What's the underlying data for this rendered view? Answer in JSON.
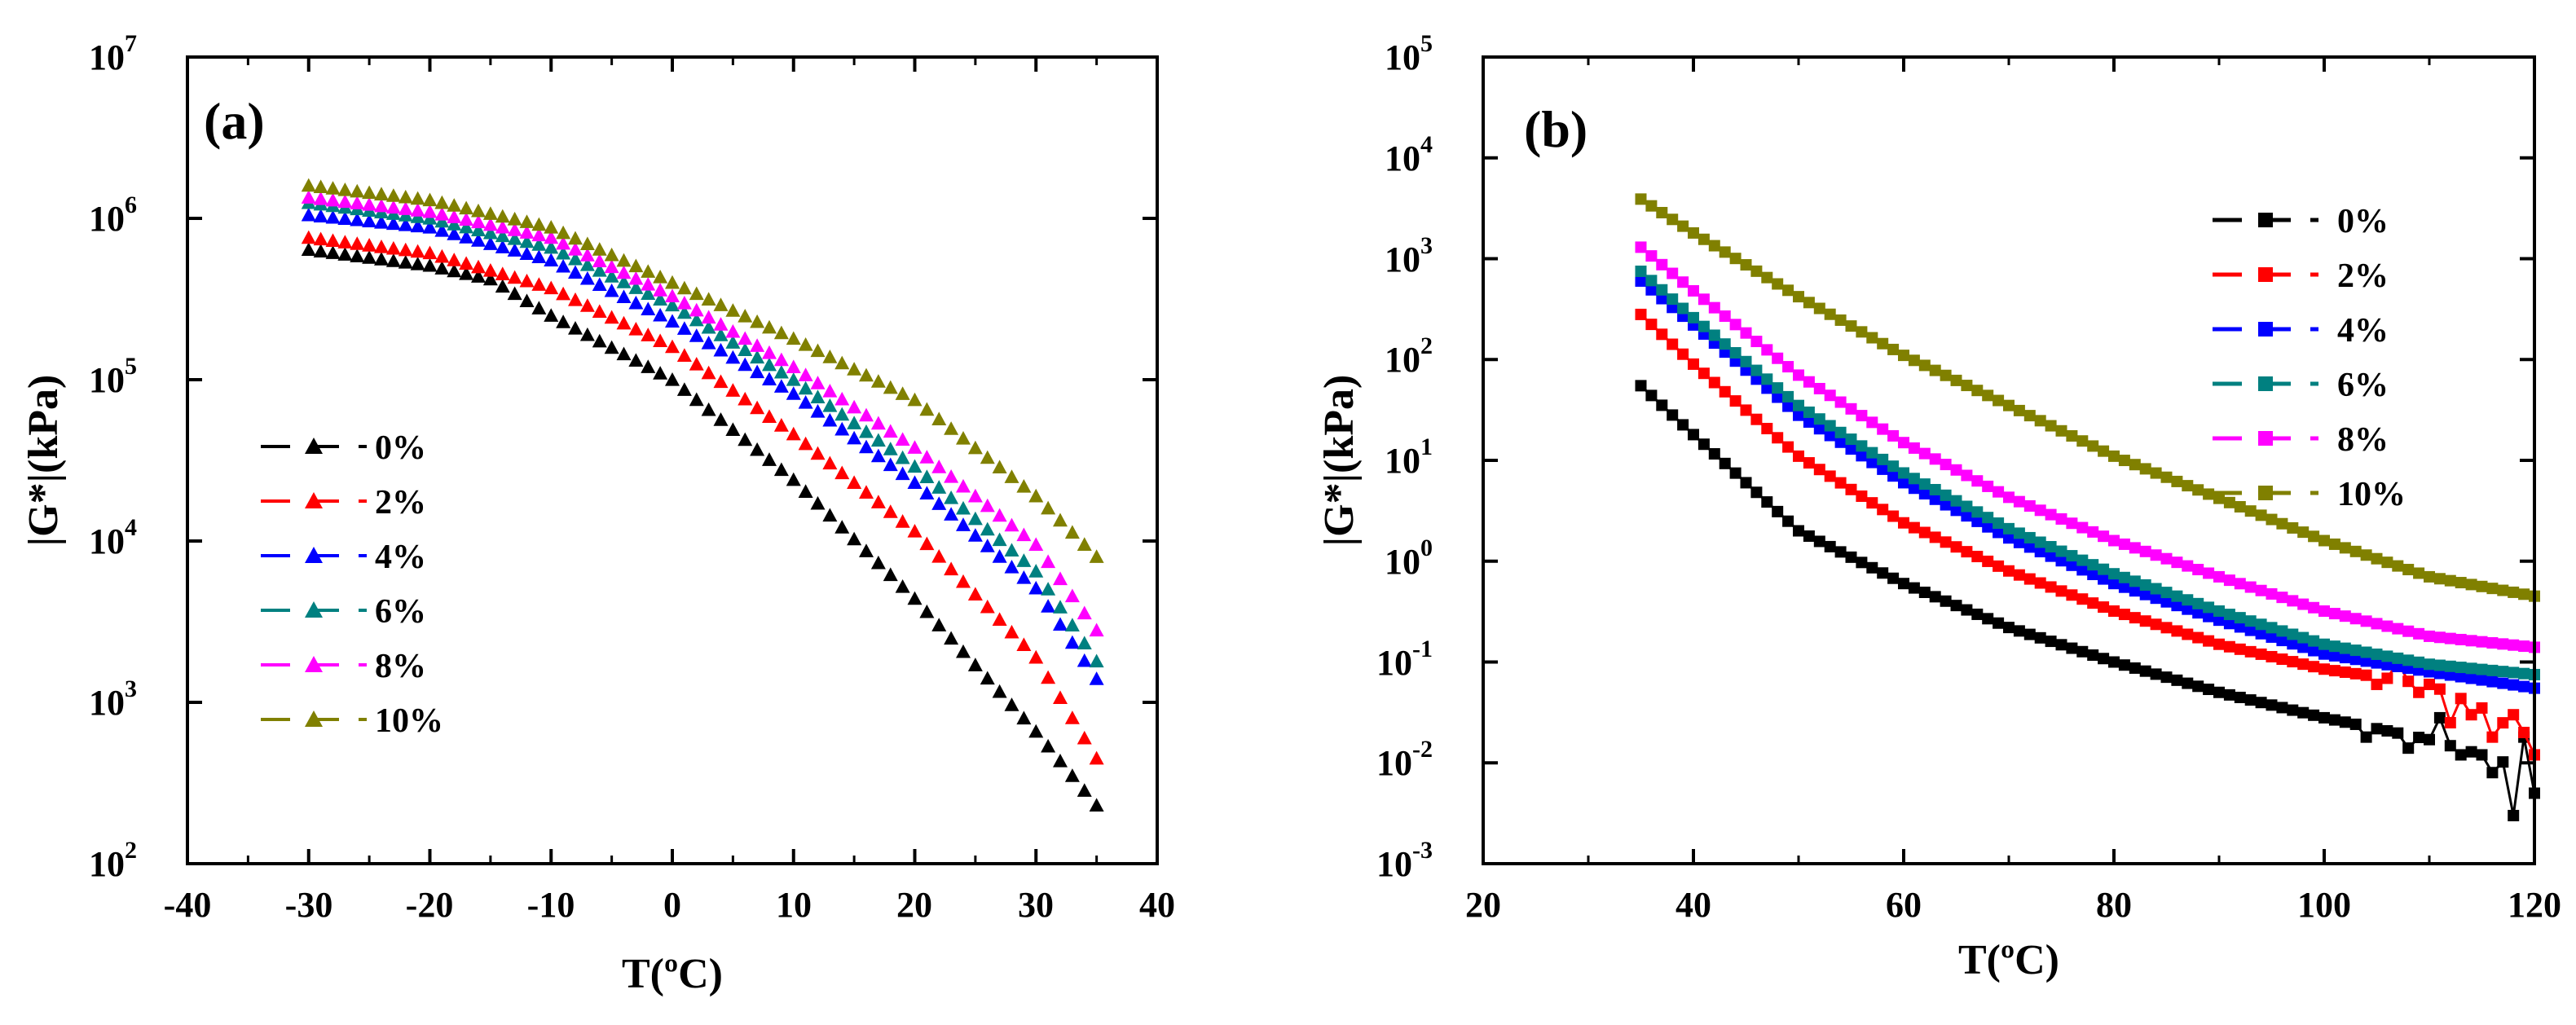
{
  "figure": {
    "panels": [
      "a",
      "b"
    ]
  },
  "chart_data": [
    {
      "type": "scatter",
      "panel_label": "(a)",
      "title": "",
      "xlabel": "T(ºC)",
      "ylabel": "|G*|(kPa)",
      "xlim": [
        -40,
        40
      ],
      "ylim_log10": [
        2,
        7
      ],
      "yscale": "log",
      "xticks": [
        "-40",
        "-30",
        "-20",
        "-10",
        "0",
        "10",
        "20",
        "30",
        "40"
      ],
      "yticks": [
        {
          "base": "10",
          "exp": "2"
        },
        {
          "base": "10",
          "exp": "3"
        },
        {
          "base": "10",
          "exp": "4"
        },
        {
          "base": "10",
          "exp": "5"
        },
        {
          "base": "10",
          "exp": "6"
        },
        {
          "base": "10",
          "exp": "7"
        }
      ],
      "marker": "triangle",
      "legend_position": "middle-left",
      "x_range": [
        -30,
        35
      ],
      "x_step": 1,
      "series": [
        {
          "name": "0%",
          "color": "#000000",
          "control_points": [
            [
              -30,
              640000.0
            ],
            [
              -20,
              510000.0
            ],
            [
              -15,
              420000.0
            ],
            [
              -10,
              250000.0
            ],
            [
              0,
              100000.0
            ],
            [
              10,
              24000.0
            ],
            [
              20,
              4400.0
            ],
            [
              30,
              660.0
            ],
            [
              35,
              230.0
            ]
          ]
        },
        {
          "name": "2%",
          "color": "#ff0000",
          "control_points": [
            [
              -30,
              760000.0
            ],
            [
              -20,
              610000.0
            ],
            [
              -10,
              370000.0
            ],
            [
              0,
              160000.0
            ],
            [
              10,
              46000.0
            ],
            [
              20,
              11500.0
            ],
            [
              30,
              1900.0
            ],
            [
              35,
              450.0
            ]
          ]
        },
        {
          "name": "4%",
          "color": "#0000ff",
          "control_points": [
            [
              -30,
              1050000.0
            ],
            [
              -20,
              880000.0
            ],
            [
              -10,
              550000.0
            ],
            [
              0,
              230000.0
            ],
            [
              10,
              82000.0
            ],
            [
              20,
              23000.0
            ],
            [
              30,
              5100.0
            ],
            [
              35,
              1400.0
            ]
          ]
        },
        {
          "name": "6%",
          "color": "#008080",
          "control_points": [
            [
              -30,
              1250000.0
            ],
            [
              -20,
              1000000.0
            ],
            [
              -10,
              660000.0
            ],
            [
              0,
              290000.0
            ],
            [
              10,
              100000.0
            ],
            [
              20,
              29000.0
            ],
            [
              30,
              6500.0
            ],
            [
              35,
              1800.0
            ]
          ]
        },
        {
          "name": "8%",
          "color": "#ff00ff",
          "control_points": [
            [
              -30,
              1350000.0
            ],
            [
              -20,
              1100000.0
            ],
            [
              -10,
              760000.0
            ],
            [
              0,
              330000.0
            ],
            [
              10,
              120000.0
            ],
            [
              20,
              38000.0
            ],
            [
              30,
              9500.0
            ],
            [
              35,
              2800.0
            ]
          ]
        },
        {
          "name": "10%",
          "color": "#808000",
          "control_points": [
            [
              -30,
              1600000.0
            ],
            [
              -20,
              1300000.0
            ],
            [
              -10,
              880000.0
            ],
            [
              0,
              400000.0
            ],
            [
              10,
              180000.0
            ],
            [
              20,
              75000.0
            ],
            [
              30,
              19000.0
            ],
            [
              35,
              8000.0
            ]
          ]
        }
      ]
    },
    {
      "type": "line",
      "panel_label": "(b)",
      "title": "",
      "xlabel": "T(ºC)",
      "ylabel": "|G*|(kPa)",
      "xlim": [
        20,
        120
      ],
      "ylim_log10": [
        -3,
        5
      ],
      "yscale": "log",
      "xticks": [
        "20",
        "40",
        "60",
        "80",
        "100",
        "120"
      ],
      "yticks": [
        {
          "base": "10",
          "exp": "-3"
        },
        {
          "base": "10",
          "exp": "-2"
        },
        {
          "base": "10",
          "exp": "-1"
        },
        {
          "base": "10",
          "exp": "0"
        },
        {
          "base": "10",
          "exp": "1"
        },
        {
          "base": "10",
          "exp": "2"
        },
        {
          "base": "10",
          "exp": "3"
        },
        {
          "base": "10",
          "exp": "4"
        },
        {
          "base": "10",
          "exp": "5"
        }
      ],
      "marker": "square",
      "legend_position": "top-right",
      "x_range": [
        35,
        120
      ],
      "x_step": 1,
      "series": [
        {
          "name": "0%",
          "color": "#000000",
          "control_points": [
            [
              35,
              55
            ],
            [
              40,
              18
            ],
            [
              50,
              2.0
            ],
            [
              60,
              0.6
            ],
            [
              70,
              0.22
            ],
            [
              80,
              0.1
            ],
            [
              90,
              0.05
            ],
            [
              100,
              0.028
            ],
            [
              110,
              0.017
            ],
            [
              115,
              0.012
            ],
            [
              120,
              0.008
            ]
          ],
          "noise": [
            [
              104,
              0.018
            ],
            [
              108,
              0.014
            ],
            [
              111,
              0.028
            ],
            [
              113,
              0.012
            ],
            [
              116,
              0.008
            ],
            [
              118,
              0.003
            ],
            [
              119,
              0.018
            ],
            [
              120,
              0.005
            ]
          ]
        },
        {
          "name": "2%",
          "color": "#ff0000",
          "control_points": [
            [
              35,
              280
            ],
            [
              40,
              90
            ],
            [
              50,
              11
            ],
            [
              60,
              2.4
            ],
            [
              70,
              0.8
            ],
            [
              80,
              0.32
            ],
            [
              90,
              0.15
            ],
            [
              100,
              0.085
            ],
            [
              110,
              0.06
            ],
            [
              115,
              0.035
            ],
            [
              120,
              0.015
            ]
          ],
          "noise": [
            [
              105,
              0.06
            ],
            [
              107,
              0.1
            ],
            [
              109,
              0.05
            ],
            [
              112,
              0.025
            ],
            [
              114,
              0.03
            ],
            [
              116,
              0.018
            ],
            [
              118,
              0.03
            ],
            [
              119,
              0.02
            ],
            [
              120,
              0.012
            ]
          ]
        },
        {
          "name": "4%",
          "color": "#0000ff",
          "control_points": [
            [
              35,
              600
            ],
            [
              40,
              220
            ],
            [
              50,
              28
            ],
            [
              60,
              6.0
            ],
            [
              70,
              1.7
            ],
            [
              80,
              0.6
            ],
            [
              90,
              0.26
            ],
            [
              100,
              0.12
            ],
            [
              110,
              0.08
            ],
            [
              120,
              0.055
            ]
          ]
        },
        {
          "name": "6%",
          "color": "#008080",
          "control_points": [
            [
              35,
              750
            ],
            [
              40,
              260
            ],
            [
              50,
              35
            ],
            [
              60,
              7.5
            ],
            [
              70,
              2.1
            ],
            [
              80,
              0.75
            ],
            [
              90,
              0.32
            ],
            [
              100,
              0.15
            ],
            [
              110,
              0.095
            ],
            [
              120,
              0.075
            ]
          ]
        },
        {
          "name": "8%",
          "color": "#ff00ff",
          "control_points": [
            [
              35,
              1300
            ],
            [
              40,
              480
            ],
            [
              50,
              70
            ],
            [
              60,
              15
            ],
            [
              70,
              4.3
            ],
            [
              80,
              1.6
            ],
            [
              90,
              0.7
            ],
            [
              100,
              0.32
            ],
            [
              110,
              0.18
            ],
            [
              120,
              0.14
            ]
          ]
        },
        {
          "name": "10%",
          "color": "#808000",
          "control_points": [
            [
              35,
              3900
            ],
            [
              40,
              1800
            ],
            [
              50,
              420
            ],
            [
              60,
              110
            ],
            [
              70,
              35
            ],
            [
              80,
              11
            ],
            [
              90,
              4.2
            ],
            [
              100,
              1.6
            ],
            [
              110,
              0.7
            ],
            [
              120,
              0.45
            ]
          ]
        }
      ]
    }
  ]
}
